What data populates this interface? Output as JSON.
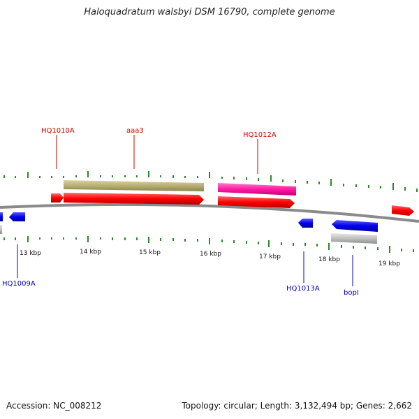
{
  "title": "Haloquadratum walsbyi DSM 16790, complete genome",
  "footer": {
    "accession": "Accession: NC_008212",
    "summary": "Topology: circular; Length: 3,132,494 bp; Genes: 2,662"
  },
  "colors": {
    "forward": "#ff0000",
    "reverse": "#0000ee",
    "label_forward": "#cc0000",
    "label_reverse": "#0000cc",
    "tick": "#2a8a2a",
    "backbone": "#888888",
    "olive": "#b8b070",
    "magenta": "#ff1aa3",
    "gray_feature": "#c0c0c0"
  },
  "kbp_labels": [
    "13 kbp",
    "14 kbp",
    "15 kbp",
    "16 kbp",
    "17 kbp",
    "18 kbp",
    "19 kbp"
  ],
  "gene_labels": [
    {
      "text": "HQ1010A",
      "strand": "forward"
    },
    {
      "text": "aaa3",
      "strand": "forward"
    },
    {
      "text": "HQ1012A",
      "strand": "forward"
    },
    {
      "text": "HQ1009A",
      "strand": "reverse"
    },
    {
      "text": "HQ1013A",
      "strand": "reverse"
    },
    {
      "text": "bopI",
      "strand": "reverse"
    }
  ]
}
